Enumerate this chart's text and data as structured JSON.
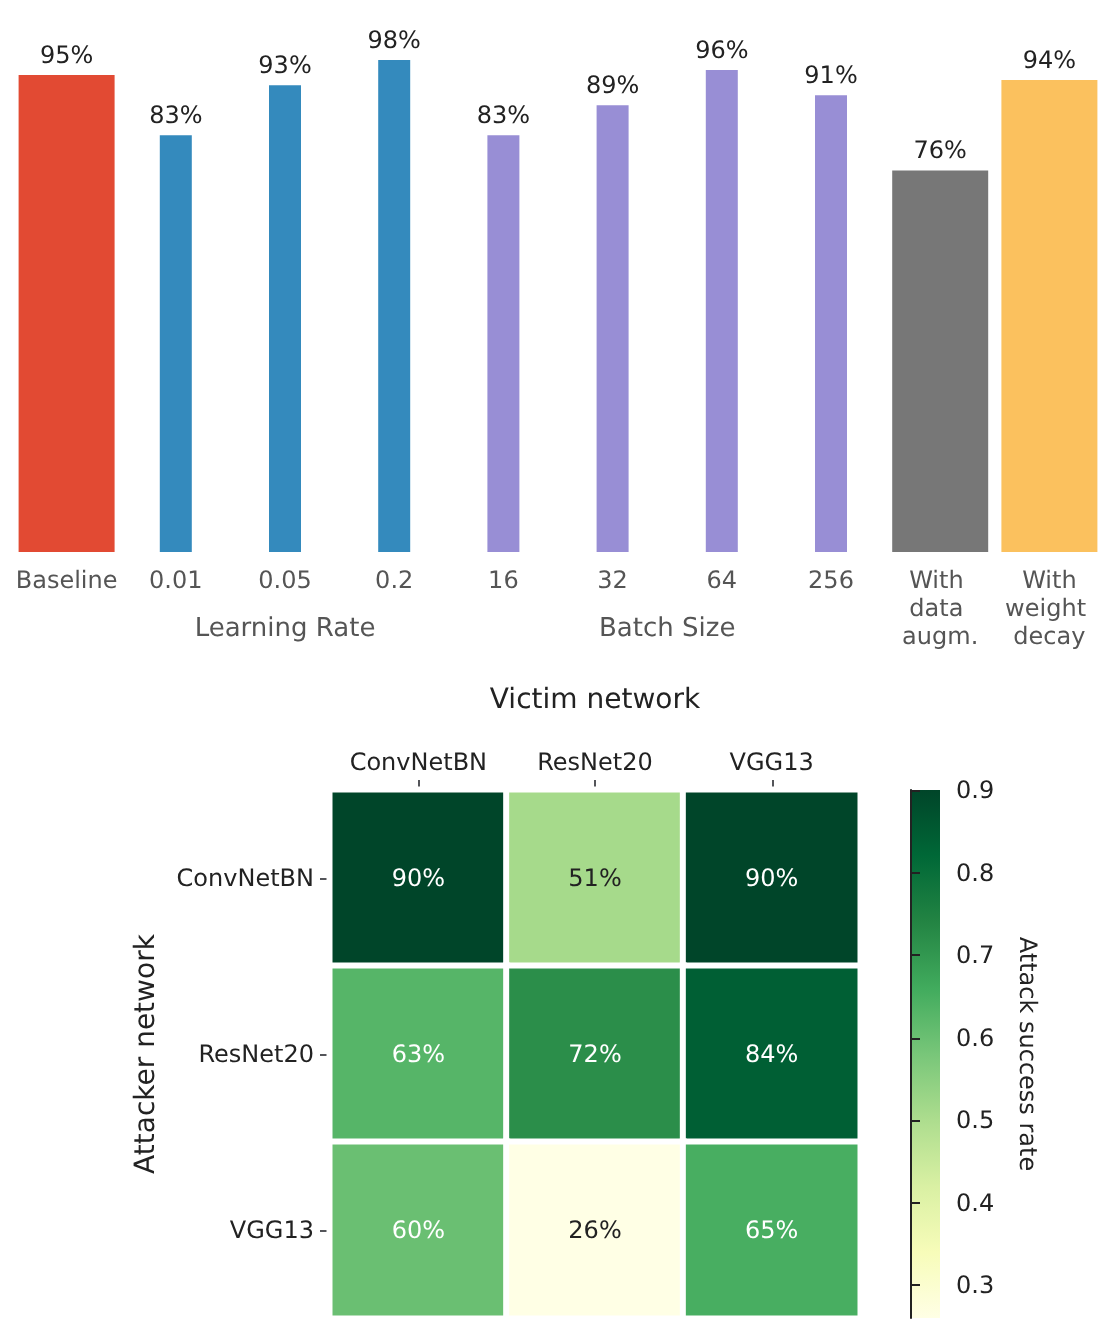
{
  "chart_data": [
    {
      "type": "bar",
      "categories": [
        "Baseline",
        "0.01",
        "0.05",
        "0.2",
        "16",
        "32",
        "64",
        "256",
        "With data augm.",
        "With\nweight decay"
      ],
      "series": [
        {
          "color": "#e24a33",
          "values": [
            95,
            null,
            null,
            null,
            null,
            null,
            null,
            null,
            null,
            null
          ],
          "value_labels": [
            "95%",
            null,
            null,
            null,
            null,
            null,
            null,
            null,
            null,
            null
          ]
        },
        {
          "name": "Learning Rate",
          "color": "#348abd",
          "values": [
            null,
            83,
            93,
            98,
            null,
            null,
            null,
            null,
            null,
            null
          ],
          "value_labels": [
            null,
            "83%",
            "93%",
            "98%",
            null,
            null,
            null,
            null,
            null,
            null
          ]
        },
        {
          "name": "Batch Size",
          "color": "#988ed5",
          "values": [
            null,
            null,
            null,
            null,
            83,
            89,
            96,
            91,
            null,
            null
          ],
          "value_labels": [
            null,
            null,
            null,
            null,
            "83%",
            "89%",
            "96%",
            "91%",
            null,
            null
          ]
        },
        {
          "color": "#777777",
          "values": [
            null,
            null,
            null,
            null,
            null,
            null,
            null,
            null,
            76,
            null
          ],
          "value_labels": [
            null,
            null,
            null,
            null,
            null,
            null,
            null,
            null,
            "76%",
            null
          ]
        },
        {
          "color": "#fbc15e",
          "values": [
            null,
            null,
            null,
            null,
            null,
            null,
            null,
            null,
            null,
            94
          ],
          "value_labels": [
            null,
            null,
            null,
            null,
            null,
            null,
            null,
            null,
            null,
            "94%"
          ]
        }
      ]
    },
    {
      "type": "heatmap",
      "xlabel": "Victim network",
      "ylabel": "Attacker network",
      "clabel": "Attack success rate",
      "categories": [
        "ConvNetBN",
        "ResNet20",
        "VGG13"
      ],
      "y_categories": [
        "ConvNetBN",
        "ResNet20",
        "VGG13"
      ],
      "cells": [
        [
          0.9,
          0.51,
          0.9
        ],
        [
          0.63,
          0.72,
          0.84
        ],
        [
          0.6,
          0.26,
          0.65
        ]
      ],
      "cell_labels": [
        [
          "90%",
          "51%",
          "90%"
        ],
        [
          "63%",
          "72%",
          "84%"
        ],
        [
          "60%",
          "26%",
          "65%"
        ]
      ],
      "clim": [
        0.26,
        0.9
      ],
      "cticks": [
        0.3,
        0.4,
        0.5,
        0.6,
        0.7,
        0.8,
        0.9
      ]
    }
  ]
}
